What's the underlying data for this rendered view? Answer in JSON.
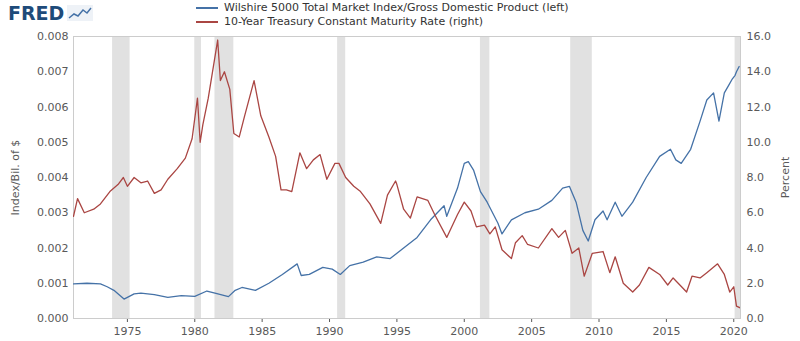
{
  "chart_data": {
    "type": "line",
    "brand": "FRED",
    "y_label": "Index/Bil. of $",
    "y2_label": "Percent",
    "xlim": [
      1971,
      2020.5
    ],
    "xticks": [
      1975,
      1980,
      1985,
      1990,
      1995,
      2000,
      2005,
      2010,
      2015,
      2020
    ],
    "ylim": [
      0,
      0.008
    ],
    "yticks": [
      {
        "value": 0,
        "label": "0.000"
      },
      {
        "value": 0.001,
        "label": "0.001"
      },
      {
        "value": 0.002,
        "label": "0.002"
      },
      {
        "value": 0.003,
        "label": "0.003"
      },
      {
        "value": 0.004,
        "label": "0.004"
      },
      {
        "value": 0.005,
        "label": "0.005"
      },
      {
        "value": 0.006,
        "label": "0.006"
      },
      {
        "value": 0.007,
        "label": "0.007"
      },
      {
        "value": 0.008,
        "label": "0.008"
      }
    ],
    "y2lim": [
      0,
      16
    ],
    "y2ticks": [
      {
        "value": 0,
        "label": "0.0"
      },
      {
        "value": 2,
        "label": "2.0"
      },
      {
        "value": 4,
        "label": "4.0"
      },
      {
        "value": 6,
        "label": "6.0"
      },
      {
        "value": 8,
        "label": "8.0"
      },
      {
        "value": 10,
        "label": "10.0"
      },
      {
        "value": 12,
        "label": "12.0"
      },
      {
        "value": 14,
        "label": "14.0"
      },
      {
        "value": 16,
        "label": "16.0"
      }
    ],
    "grid": false,
    "recessions": [
      [
        1973.9,
        1975.2
      ],
      [
        1980.0,
        1980.5
      ],
      [
        1981.5,
        1982.9
      ],
      [
        1990.6,
        1991.2
      ],
      [
        2001.2,
        2001.9
      ],
      [
        2007.9,
        2009.5
      ],
      [
        2020.1,
        2020.5
      ]
    ],
    "series": [
      {
        "name": "Wilshire 5000 Total Market Index/Gross Domestic Product (left)",
        "color": "#4572a7",
        "x": [
          1971,
          1972,
          1973,
          1973.5,
          1974,
          1974.75,
          1975,
          1975.5,
          1976,
          1977,
          1978,
          1979,
          1980,
          1980.9,
          1981.5,
          1982.5,
          1983,
          1983.5,
          1984.5,
          1985.5,
          1986.5,
          1987.6,
          1987.9,
          1988.5,
          1989.5,
          1990.2,
          1990.8,
          1991.5,
          1992.5,
          1993.5,
          1994.5,
          1995.5,
          1996.5,
          1997.5,
          1998.5,
          1998.7,
          1999.5,
          2000.0,
          2000.3,
          2000.7,
          2001.2,
          2001.7,
          2002.5,
          2002.8,
          2003.5,
          2004.5,
          2005.5,
          2006.5,
          2007.3,
          2007.8,
          2008.3,
          2008.8,
          2009.2,
          2009.7,
          2010.3,
          2010.6,
          2011.2,
          2011.7,
          2012.5,
          2013.5,
          2014.5,
          2015.3,
          2015.7,
          2016.1,
          2016.8,
          2017.5,
          2018.0,
          2018.5,
          2018.9,
          2019.3,
          2019.6,
          2019.9,
          2020.1,
          2020.2,
          2020.4
        ],
        "values": [
          0.00098,
          0.001,
          0.00098,
          0.0009,
          0.0008,
          0.00055,
          0.0006,
          0.0007,
          0.00072,
          0.00068,
          0.0006,
          0.00065,
          0.00063,
          0.00078,
          0.00072,
          0.00062,
          0.0008,
          0.00088,
          0.0008,
          0.001,
          0.00125,
          0.00155,
          0.00122,
          0.00125,
          0.00145,
          0.0014,
          0.00125,
          0.0015,
          0.0016,
          0.00175,
          0.0017,
          0.002,
          0.0023,
          0.0028,
          0.0032,
          0.0029,
          0.0037,
          0.0044,
          0.00445,
          0.0042,
          0.0036,
          0.0033,
          0.0027,
          0.0024,
          0.0028,
          0.003,
          0.0031,
          0.00335,
          0.0037,
          0.00375,
          0.0033,
          0.0025,
          0.0022,
          0.0028,
          0.00305,
          0.0028,
          0.0033,
          0.0029,
          0.0033,
          0.004,
          0.0046,
          0.0048,
          0.0045,
          0.0044,
          0.0048,
          0.0056,
          0.0062,
          0.0064,
          0.0056,
          0.0064,
          0.0066,
          0.0068,
          0.0069,
          0.007,
          0.00715
        ]
      },
      {
        "name": "10-Year Treasury Constant Maturity Rate (right)",
        "color": "#aa4643",
        "axis": "y2",
        "x": [
          1971.0,
          1971.3,
          1971.8,
          1972.5,
          1973.0,
          1973.7,
          1974.3,
          1974.7,
          1975.0,
          1975.5,
          1976.0,
          1976.5,
          1977.0,
          1977.5,
          1978.0,
          1978.7,
          1979.3,
          1979.8,
          1980.2,
          1980.4,
          1980.6,
          1981.0,
          1981.7,
          1981.9,
          1982.2,
          1982.6,
          1982.9,
          1983.3,
          1983.7,
          1984.4,
          1984.9,
          1985.5,
          1986.0,
          1986.4,
          1986.8,
          1987.2,
          1987.8,
          1988.3,
          1988.8,
          1989.3,
          1989.8,
          1990.4,
          1990.7,
          1991.2,
          1991.8,
          1992.3,
          1993.0,
          1993.8,
          1994.3,
          1994.9,
          1995.0,
          1995.5,
          1996.0,
          1996.5,
          1997.3,
          1997.8,
          1998.7,
          1999.5,
          2000.0,
          2000.5,
          2000.9,
          2001.5,
          2001.9,
          2002.3,
          2002.8,
          2003.5,
          2003.8,
          2004.3,
          2004.7,
          2005.5,
          2006.5,
          2007.0,
          2007.5,
          2008.0,
          2008.5,
          2008.9,
          2009.5,
          2010.3,
          2010.8,
          2011.2,
          2011.8,
          2012.5,
          2013.0,
          2013.7,
          2014.5,
          2015.1,
          2015.5,
          2016.5,
          2016.9,
          2017.5,
          2018.0,
          2018.8,
          2019.3,
          2019.7,
          2020.0,
          2020.2,
          2020.5
        ],
        "values": [
          5.8,
          6.8,
          6.0,
          6.2,
          6.5,
          7.2,
          7.6,
          8.0,
          7.5,
          8.0,
          7.7,
          7.8,
          7.1,
          7.3,
          7.9,
          8.5,
          9.1,
          10.2,
          12.5,
          10.0,
          11.0,
          12.5,
          15.8,
          13.5,
          14.0,
          13.0,
          10.5,
          10.3,
          11.5,
          13.5,
          11.5,
          10.3,
          9.2,
          7.3,
          7.3,
          7.2,
          9.4,
          8.5,
          9.0,
          9.3,
          7.9,
          8.8,
          8.8,
          8.0,
          7.5,
          7.2,
          6.5,
          5.4,
          7.0,
          7.8,
          7.6,
          6.2,
          5.7,
          6.9,
          6.7,
          5.9,
          4.6,
          5.9,
          6.6,
          6.1,
          5.2,
          5.3,
          4.8,
          5.2,
          3.9,
          3.4,
          4.3,
          4.7,
          4.2,
          4.0,
          5.1,
          4.6,
          5.0,
          3.7,
          4.0,
          2.4,
          3.7,
          3.8,
          2.6,
          3.5,
          2.0,
          1.5,
          1.9,
          2.9,
          2.5,
          1.9,
          2.3,
          1.5,
          2.4,
          2.3,
          2.6,
          3.1,
          2.5,
          1.5,
          1.8,
          0.7,
          0.6
        ]
      }
    ]
  }
}
